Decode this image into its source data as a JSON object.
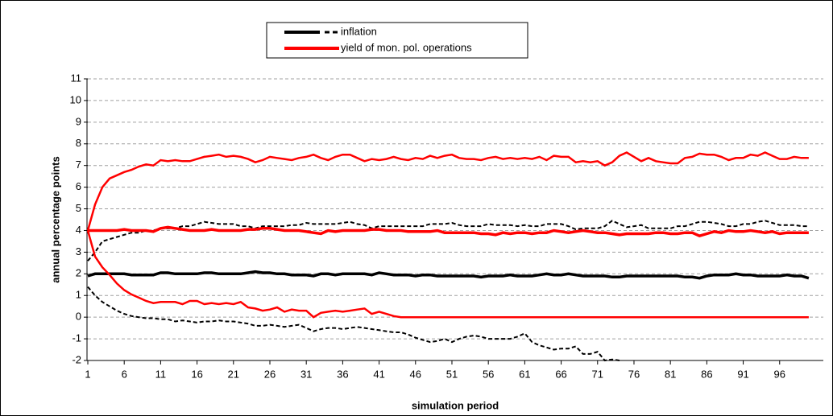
{
  "chart_data": {
    "type": "line",
    "y_label": "annual percentage points",
    "x_label": "simulation period",
    "x": [
      1,
      2,
      3,
      4,
      5,
      6,
      7,
      8,
      9,
      10,
      11,
      12,
      13,
      14,
      15,
      16,
      17,
      18,
      19,
      20,
      21,
      22,
      23,
      24,
      25,
      26,
      27,
      28,
      29,
      30,
      31,
      32,
      33,
      34,
      35,
      36,
      37,
      38,
      39,
      40,
      41,
      42,
      43,
      44,
      45,
      46,
      47,
      48,
      49,
      50,
      51,
      52,
      53,
      54,
      55,
      56,
      57,
      58,
      59,
      60,
      61,
      62,
      63,
      64,
      65,
      66,
      67,
      68,
      69,
      70,
      71,
      72,
      73,
      74,
      75,
      76,
      77,
      78,
      79,
      80,
      81,
      82,
      83,
      84,
      85,
      86,
      87,
      88,
      89,
      90,
      91,
      92,
      93,
      94,
      95,
      96,
      97,
      98,
      99,
      100
    ],
    "xlim": [
      1,
      102
    ],
    "xticks": [
      1,
      6,
      11,
      16,
      21,
      26,
      31,
      36,
      41,
      46,
      51,
      56,
      61,
      66,
      71,
      76,
      81,
      86,
      91,
      96
    ],
    "ylim": [
      -2,
      11
    ],
    "yticks": [
      -2,
      -1,
      0,
      1,
      2,
      3,
      4,
      5,
      6,
      7,
      8,
      9,
      10,
      11
    ],
    "grid": true,
    "legend": "top",
    "series": [
      {
        "name": "inflation",
        "color": "#000000",
        "values": [
          1.9,
          2.0,
          2.0,
          2.0,
          2.0,
          2.0,
          1.95,
          1.95,
          1.95,
          1.95,
          2.05,
          2.05,
          2.0,
          2.0,
          2.0,
          2.0,
          2.05,
          2.05,
          2.0,
          2.0,
          2.0,
          2.0,
          2.05,
          2.1,
          2.05,
          2.05,
          2.0,
          2.0,
          1.95,
          1.95,
          1.95,
          1.9,
          2.0,
          2.0,
          1.95,
          2.0,
          2.0,
          2.0,
          2.0,
          1.95,
          2.05,
          2.0,
          1.95,
          1.95,
          1.95,
          1.9,
          1.95,
          1.95,
          1.9,
          1.9,
          1.9,
          1.9,
          1.9,
          1.9,
          1.85,
          1.9,
          1.9,
          1.9,
          1.95,
          1.9,
          1.9,
          1.9,
          1.95,
          2.0,
          1.95,
          1.95,
          2.0,
          1.95,
          1.9,
          1.9,
          1.9,
          1.9,
          1.85,
          1.85,
          1.9,
          1.9,
          1.9,
          1.9,
          1.9,
          1.9,
          1.9,
          1.9,
          1.85,
          1.85,
          1.8,
          1.9,
          1.95,
          1.95,
          1.95,
          2.0,
          1.95,
          1.95,
          1.9,
          1.9,
          1.9,
          1.9,
          1.95,
          1.9,
          1.9,
          1.8
        ],
        "upper": [
          2.6,
          3.0,
          3.5,
          3.6,
          3.7,
          3.8,
          3.9,
          3.9,
          4.0,
          4.0,
          4.1,
          4.1,
          4.1,
          4.2,
          4.2,
          4.3,
          4.4,
          4.35,
          4.3,
          4.3,
          4.3,
          4.2,
          4.2,
          4.1,
          4.2,
          4.2,
          4.2,
          4.2,
          4.25,
          4.25,
          4.35,
          4.3,
          4.3,
          4.3,
          4.3,
          4.35,
          4.4,
          4.3,
          4.25,
          4.1,
          4.2,
          4.2,
          4.2,
          4.2,
          4.2,
          4.2,
          4.2,
          4.3,
          4.3,
          4.3,
          4.35,
          4.25,
          4.2,
          4.2,
          4.2,
          4.3,
          4.25,
          4.25,
          4.25,
          4.2,
          4.25,
          4.2,
          4.2,
          4.3,
          4.3,
          4.3,
          4.2,
          4.05,
          4.1,
          4.1,
          4.1,
          4.2,
          4.45,
          4.3,
          4.15,
          4.2,
          4.25,
          4.1,
          4.1,
          4.1,
          4.1,
          4.2,
          4.2,
          4.3,
          4.4,
          4.4,
          4.35,
          4.3,
          4.2,
          4.2,
          4.3,
          4.3,
          4.4,
          4.45,
          4.35,
          4.25,
          4.25,
          4.25,
          4.2,
          4.2
        ],
        "lower": [
          1.4,
          1.0,
          0.7,
          0.5,
          0.3,
          0.15,
          0.05,
          0.0,
          -0.05,
          -0.05,
          -0.1,
          -0.1,
          -0.2,
          -0.15,
          -0.2,
          -0.25,
          -0.2,
          -0.2,
          -0.15,
          -0.2,
          -0.2,
          -0.25,
          -0.3,
          -0.4,
          -0.4,
          -0.35,
          -0.4,
          -0.45,
          -0.4,
          -0.35,
          -0.5,
          -0.65,
          -0.55,
          -0.5,
          -0.5,
          -0.55,
          -0.5,
          -0.45,
          -0.5,
          -0.55,
          -0.6,
          -0.65,
          -0.7,
          -0.7,
          -0.8,
          -0.95,
          -1.05,
          -1.15,
          -1.1,
          -1.0,
          -1.15,
          -1.0,
          -0.9,
          -0.85,
          -0.9,
          -1.0,
          -1.0,
          -1.0,
          -1.0,
          -0.9,
          -0.75,
          -1.15,
          -1.3,
          -1.4,
          -1.5,
          -1.45,
          -1.45,
          -1.35,
          -1.7,
          -1.7,
          -1.6,
          -2.0,
          -1.95,
          -2.0,
          null,
          null,
          null,
          null,
          null,
          null,
          null,
          null,
          null,
          null,
          null,
          null,
          null,
          null,
          null,
          null,
          null,
          null,
          null,
          null,
          null,
          null,
          null,
          null,
          null,
          null
        ]
      },
      {
        "name": "yield of mon. pol. operations",
        "color": "#ff0000",
        "values": [
          4.0,
          4.0,
          4.0,
          4.0,
          4.0,
          4.05,
          4.0,
          4.0,
          4.0,
          3.95,
          4.1,
          4.15,
          4.1,
          4.05,
          4.0,
          4.0,
          4.0,
          4.05,
          4.0,
          4.0,
          4.0,
          4.0,
          4.05,
          4.05,
          4.1,
          4.1,
          4.05,
          4.0,
          4.0,
          4.0,
          3.95,
          3.9,
          3.85,
          4.0,
          3.95,
          4.0,
          4.0,
          4.0,
          4.0,
          4.05,
          4.05,
          4.0,
          4.0,
          4.0,
          3.95,
          3.95,
          3.95,
          3.95,
          4.0,
          3.9,
          3.9,
          3.9,
          3.9,
          3.9,
          3.85,
          3.85,
          3.8,
          3.9,
          3.85,
          3.9,
          3.9,
          3.85,
          3.9,
          3.9,
          4.0,
          3.95,
          3.9,
          3.95,
          4.0,
          3.95,
          3.9,
          3.9,
          3.85,
          3.8,
          3.85,
          3.85,
          3.85,
          3.85,
          3.9,
          3.9,
          3.85,
          3.85,
          3.9,
          3.9,
          3.75,
          3.85,
          3.95,
          3.9,
          4.0,
          3.95,
          3.95,
          4.0,
          3.95,
          3.9,
          3.95,
          3.85,
          3.9,
          3.9,
          3.9,
          3.9
        ],
        "upper": [
          4.0,
          5.2,
          6.0,
          6.4,
          6.55,
          6.7,
          6.8,
          6.95,
          7.05,
          7.0,
          7.25,
          7.2,
          7.25,
          7.2,
          7.2,
          7.3,
          7.4,
          7.45,
          7.5,
          7.4,
          7.45,
          7.4,
          7.3,
          7.15,
          7.25,
          7.4,
          7.35,
          7.3,
          7.25,
          7.35,
          7.4,
          7.5,
          7.35,
          7.25,
          7.4,
          7.5,
          7.5,
          7.35,
          7.2,
          7.3,
          7.25,
          7.3,
          7.4,
          7.3,
          7.25,
          7.35,
          7.3,
          7.45,
          7.35,
          7.45,
          7.5,
          7.35,
          7.3,
          7.3,
          7.25,
          7.35,
          7.4,
          7.3,
          7.35,
          7.3,
          7.35,
          7.3,
          7.4,
          7.25,
          7.45,
          7.4,
          7.4,
          7.15,
          7.2,
          7.15,
          7.2,
          7.0,
          7.15,
          7.45,
          7.6,
          7.4,
          7.2,
          7.35,
          7.2,
          7.15,
          7.1,
          7.1,
          7.35,
          7.4,
          7.55,
          7.5,
          7.5,
          7.4,
          7.25,
          7.35,
          7.35,
          7.5,
          7.45,
          7.6,
          7.45,
          7.3,
          7.3,
          7.4,
          7.35,
          7.35
        ],
        "lower": [
          4.0,
          2.8,
          2.3,
          1.95,
          1.55,
          1.25,
          1.05,
          0.9,
          0.75,
          0.65,
          0.7,
          0.7,
          0.7,
          0.6,
          0.75,
          0.75,
          0.6,
          0.65,
          0.6,
          0.65,
          0.6,
          0.7,
          0.45,
          0.4,
          0.3,
          0.35,
          0.45,
          0.25,
          0.35,
          0.3,
          0.3,
          0.0,
          0.2,
          0.25,
          0.3,
          0.25,
          0.3,
          0.35,
          0.4,
          0.15,
          0.25,
          0.15,
          0.05,
          0,
          0,
          0,
          0,
          0,
          0,
          0,
          0,
          0,
          0,
          0,
          0,
          0,
          0,
          0,
          0,
          0,
          0,
          0,
          0,
          0,
          0,
          0,
          0,
          0,
          0,
          0,
          0,
          0,
          0,
          0,
          0,
          0,
          0,
          0,
          0,
          0,
          0,
          0,
          0,
          0,
          0,
          0,
          0,
          0,
          0,
          0,
          0,
          0,
          0,
          0,
          0,
          0,
          0,
          0,
          0,
          0
        ]
      }
    ]
  }
}
